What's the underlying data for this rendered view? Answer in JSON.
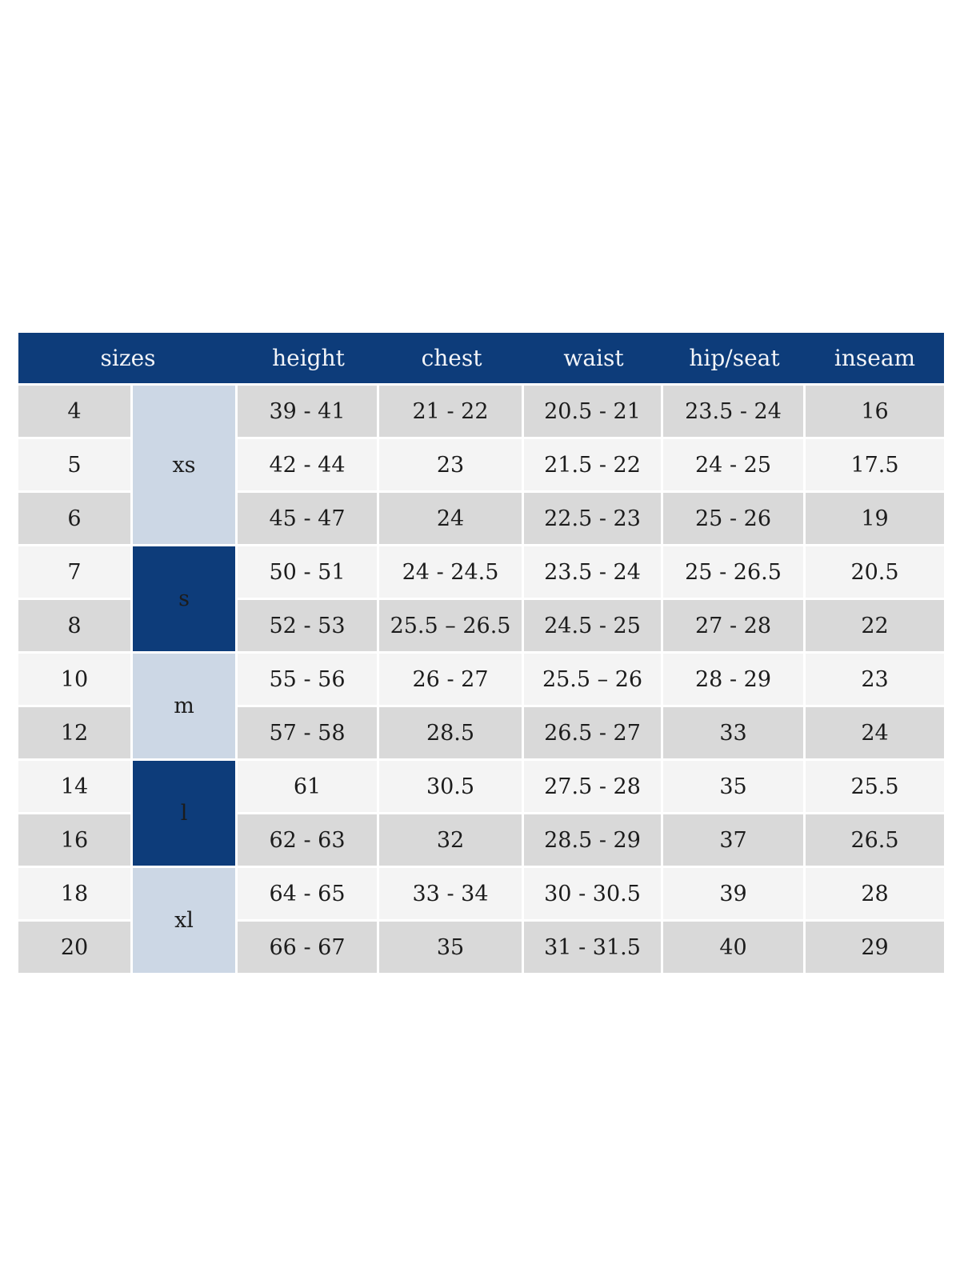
{
  "chart_data": {
    "type": "table",
    "columns": [
      "sizes",
      "height",
      "chest",
      "waist",
      "hip/seat",
      "inseam"
    ],
    "groups": [
      {
        "label": "xs",
        "tone": "light",
        "rows": [
          {
            "size": "4",
            "height": "39 - 41",
            "chest": "21 - 22",
            "waist": "20.5 - 21",
            "hip_seat": "23.5 - 24",
            "inseam": "16"
          },
          {
            "size": "5",
            "height": "42 - 44",
            "chest": "23",
            "waist": "21.5 - 22",
            "hip_seat": "24 - 25",
            "inseam": "17.5"
          },
          {
            "size": "6",
            "height": "45 - 47",
            "chest": "24",
            "waist": "22.5 - 23",
            "hip_seat": "25 - 26",
            "inseam": "19"
          }
        ]
      },
      {
        "label": "s",
        "tone": "dark",
        "rows": [
          {
            "size": "7",
            "height": "50 - 51",
            "chest": "24 - 24.5",
            "waist": "23.5 - 24",
            "hip_seat": "25 - 26.5",
            "inseam": "20.5"
          },
          {
            "size": "8",
            "height": "52 - 53",
            "chest": "25.5 – 26.5",
            "waist": "24.5 - 25",
            "hip_seat": "27 - 28",
            "inseam": "22"
          }
        ]
      },
      {
        "label": "m",
        "tone": "light",
        "rows": [
          {
            "size": "10",
            "height": "55 - 56",
            "chest": "26 - 27",
            "waist": "25.5 – 26",
            "hip_seat": "28 - 29",
            "inseam": "23"
          },
          {
            "size": "12",
            "height": "57 - 58",
            "chest": "28.5",
            "waist": "26.5 - 27",
            "hip_seat": "33",
            "inseam": "24"
          }
        ]
      },
      {
        "label": "l",
        "tone": "dark",
        "rows": [
          {
            "size": "14",
            "height": "61",
            "chest": "30.5",
            "waist": "27.5 - 28",
            "hip_seat": "35",
            "inseam": "25.5"
          },
          {
            "size": "16",
            "height": "62 - 63",
            "chest": "32",
            "waist": "28.5 - 29",
            "hip_seat": "37",
            "inseam": "26.5"
          }
        ]
      },
      {
        "label": "xl",
        "tone": "light",
        "rows": [
          {
            "size": "18",
            "height": "64 - 65",
            "chest": "33 - 34",
            "waist": "30 - 30.5",
            "hip_seat": "39",
            "inseam": "28"
          },
          {
            "size": "20",
            "height": "66 - 67",
            "chest": "35",
            "waist": "31 - 31.5",
            "hip_seat": "40",
            "inseam": "29"
          }
        ]
      }
    ],
    "colors": {
      "header_bg": "#0d3c7a",
      "header_text": "#f2f4f8",
      "group_dark_bg": "#0d3c7a",
      "group_dark_text": "#f2f4f8",
      "group_light_bg": "#ccd7e5",
      "row_odd_bg": "#d9d9d9",
      "row_even_bg": "#f4f4f4",
      "cell_text": "#1c1c1c",
      "separator": "#ffffff"
    },
    "layout": {
      "legend": "none",
      "grid": "white separators between body cells",
      "measure_columns_order": [
        "height",
        "chest",
        "waist",
        "hip_seat",
        "inseam"
      ]
    }
  }
}
